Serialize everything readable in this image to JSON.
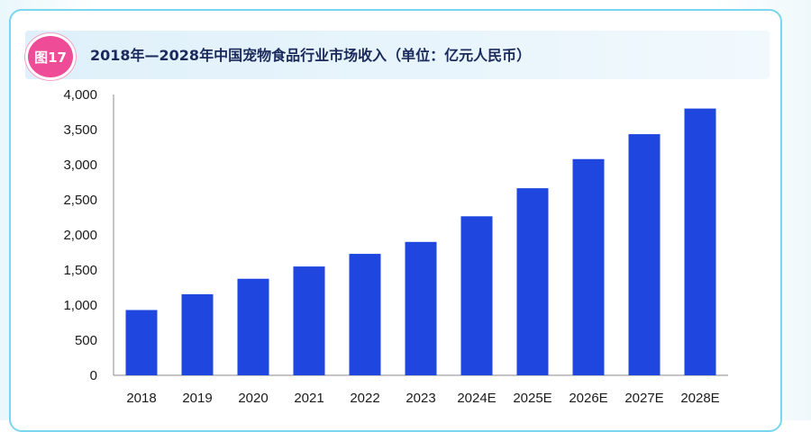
{
  "figure_badge": "图17",
  "chart_data": {
    "type": "bar",
    "title": "2018年—2028年中国宠物食品行业市场收入（单位：亿元人民币）",
    "categories": [
      "2018",
      "2019",
      "2020",
      "2021",
      "2022",
      "2023",
      "2024E",
      "2025E",
      "2026E",
      "2027E",
      "2028E"
    ],
    "values": [
      930,
      1155,
      1375,
      1550,
      1730,
      1900,
      2265,
      2665,
      3080,
      3435,
      3800
    ],
    "ylim": [
      0,
      4000
    ],
    "yticks": [
      0,
      500,
      1000,
      1500,
      2000,
      2500,
      3000,
      3500,
      4000
    ],
    "ytick_labels": [
      "0",
      "500",
      "1,000",
      "1,500",
      "2,000",
      "2,500",
      "3,000",
      "3,500",
      "4,000"
    ],
    "xlabel": "",
    "ylabel": "",
    "grid": false,
    "colors": {
      "bar": "#1f47e0",
      "axis": "#888888"
    }
  }
}
